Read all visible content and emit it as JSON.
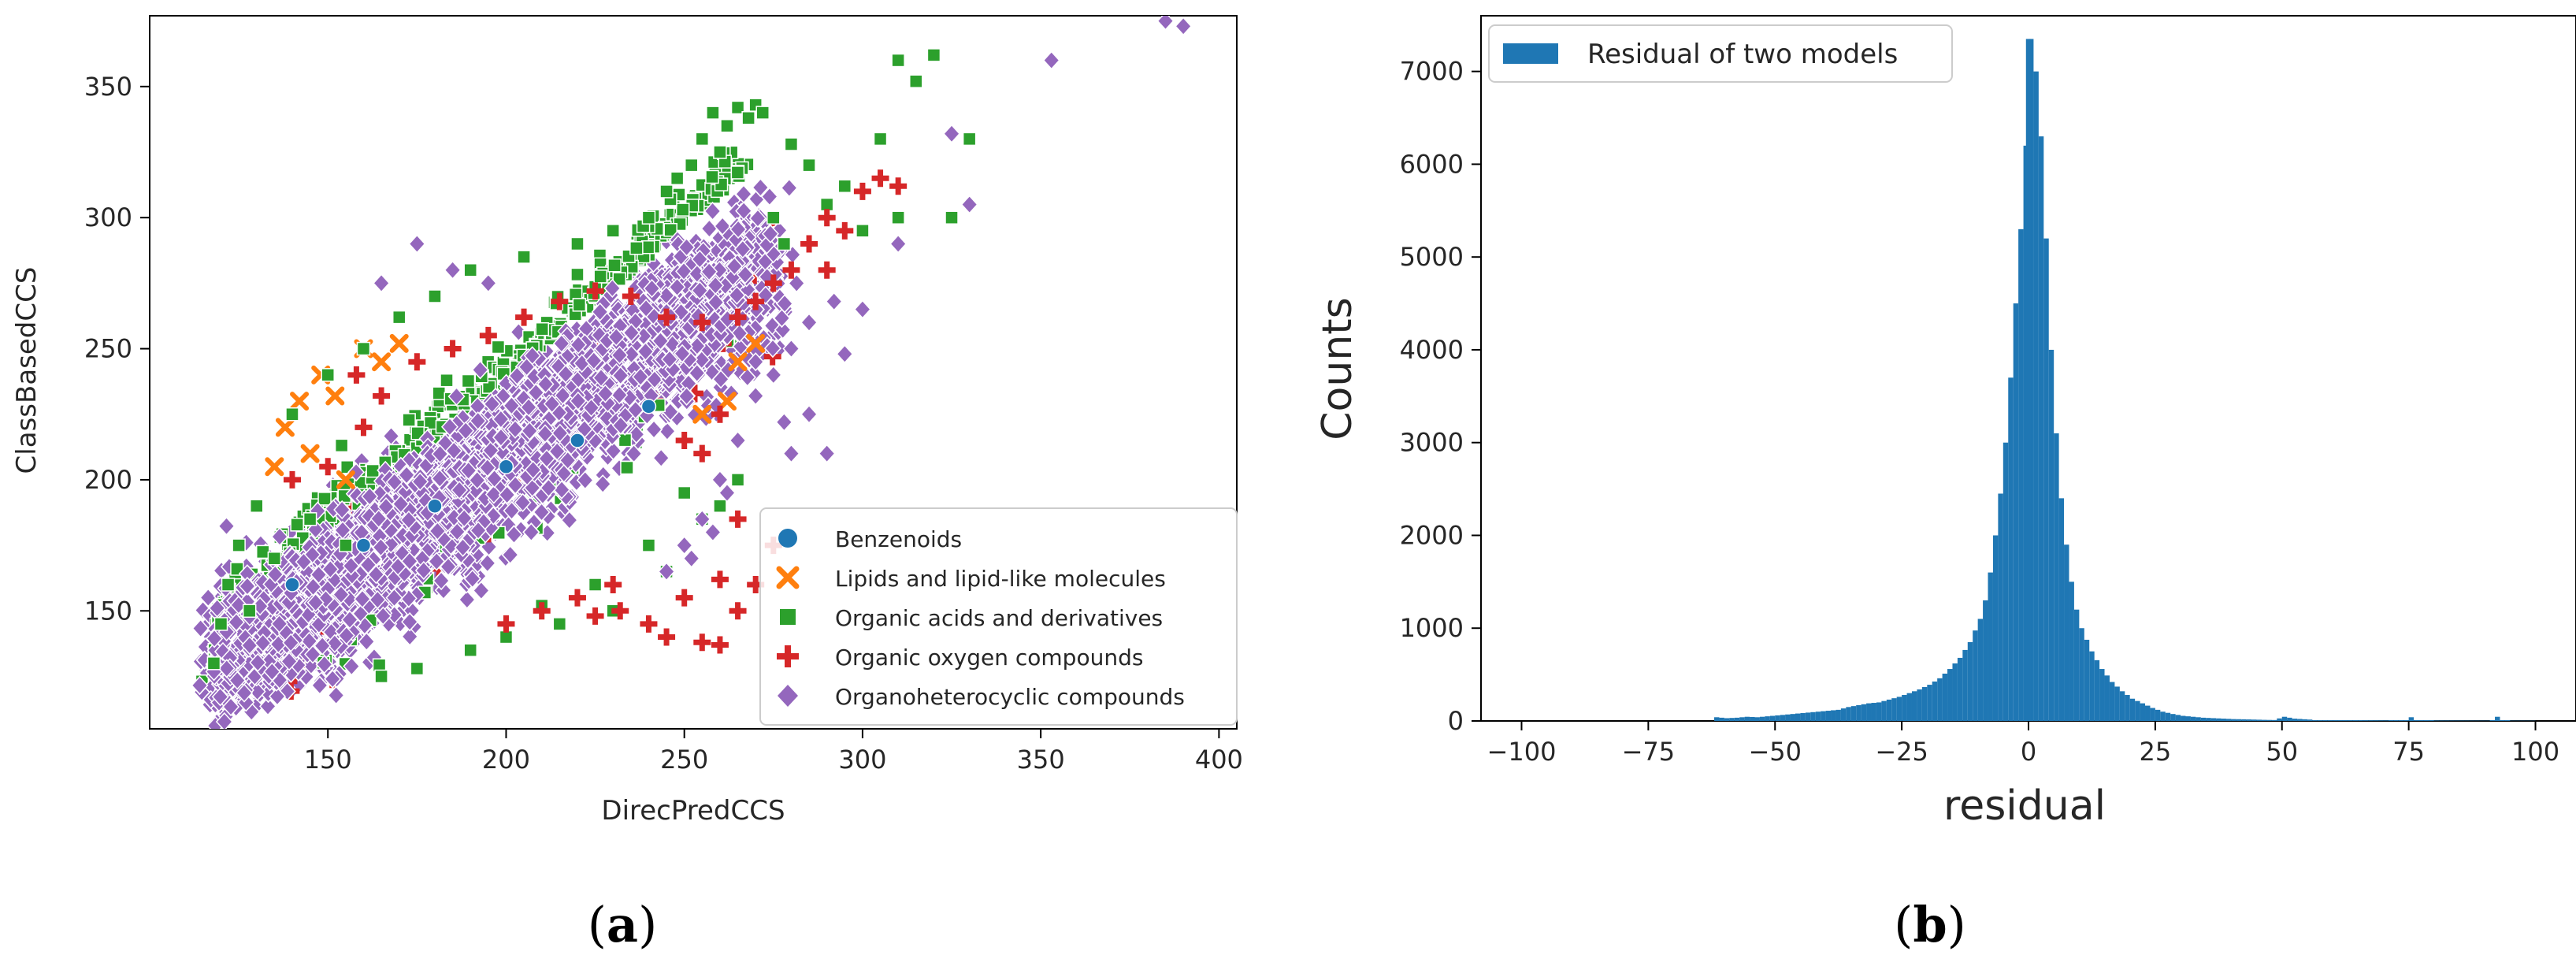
{
  "panels": {
    "a": {
      "label_open": "(",
      "label_letter": "a",
      "label_close": ")"
    },
    "b": {
      "label_open": "(",
      "label_letter": "b",
      "label_close": ")"
    }
  },
  "chart_data": [
    {
      "type": "scatter",
      "title": "",
      "xlabel": "DirecPredCCS",
      "ylabel": "ClassBasedCCS",
      "xlim": [
        100,
        405
      ],
      "ylim": [
        105,
        377
      ],
      "xticks": [
        150,
        200,
        250,
        300,
        350,
        400
      ],
      "yticks": [
        150,
        200,
        250,
        300,
        350
      ],
      "grid": false,
      "legend_position": "lower-right",
      "series": [
        {
          "name": "Benzenoids",
          "marker": "circle",
          "color": "#1f77b4",
          "points": [
            [
              140,
              160
            ],
            [
              160,
              175
            ],
            [
              180,
              190
            ],
            [
              200,
              205
            ],
            [
              220,
              215
            ],
            [
              240,
              228
            ]
          ]
        },
        {
          "name": "Lipids and lipid-like molecules",
          "marker": "x",
          "color": "#ff7f0e",
          "points": [
            [
              138,
              220
            ],
            [
              142,
              230
            ],
            [
              148,
              240
            ],
            [
              152,
              232
            ],
            [
              160,
              250
            ],
            [
              165,
              245
            ],
            [
              170,
              252
            ],
            [
              145,
              210
            ],
            [
              155,
              200
            ],
            [
              135,
              205
            ],
            [
              265,
              245
            ],
            [
              270,
              252
            ],
            [
              255,
              225
            ],
            [
              262,
              230
            ]
          ]
        },
        {
          "name": "Organic acids and derivatives",
          "marker": "square",
          "color": "#2ca02c",
          "points": [
            [
              255,
              330
            ],
            [
              258,
              340
            ],
            [
              262,
              335
            ],
            [
              265,
              342
            ],
            [
              268,
              338
            ],
            [
              260,
              325
            ],
            [
              252,
              320
            ],
            [
              248,
              315
            ],
            [
              270,
              343
            ],
            [
              272,
              340
            ],
            [
              245,
              310
            ],
            [
              240,
              300
            ],
            [
              230,
              295
            ],
            [
              220,
              290
            ],
            [
              205,
              285
            ],
            [
              190,
              280
            ],
            [
              180,
              270
            ],
            [
              170,
              262
            ],
            [
              160,
              250
            ],
            [
              150,
              240
            ],
            [
              140,
              225
            ],
            [
              130,
              190
            ],
            [
              125,
              175
            ],
            [
              122,
              160
            ],
            [
              120,
              145
            ],
            [
              118,
              130
            ],
            [
              128,
              150
            ],
            [
              135,
              170
            ],
            [
              145,
              185
            ],
            [
              155,
              175
            ],
            [
              290,
              305
            ],
            [
              295,
              312
            ],
            [
              300,
              295
            ],
            [
              310,
              300
            ],
            [
              305,
              330
            ],
            [
              310,
              360
            ],
            [
              315,
              352
            ],
            [
              320,
              362
            ],
            [
              280,
              328
            ],
            [
              285,
              320
            ],
            [
              325,
              300
            ],
            [
              330,
              330
            ],
            [
              275,
              300
            ],
            [
              278,
              290
            ],
            [
              190,
              135
            ],
            [
              200,
              140
            ],
            [
              215,
              145
            ],
            [
              230,
              150
            ],
            [
              245,
              165
            ],
            [
              255,
              185
            ],
            [
              260,
              190
            ],
            [
              265,
              200
            ],
            [
              250,
              195
            ],
            [
              240,
              175
            ],
            [
              225,
              160
            ],
            [
              210,
              152
            ],
            [
              175,
              128
            ],
            [
              165,
              125
            ]
          ]
        },
        {
          "name": "Organic oxygen compounds",
          "marker": "plus",
          "color": "#d62728",
          "points": [
            [
              245,
              140
            ],
            [
              255,
              138
            ],
            [
              260,
              137
            ],
            [
              265,
              150
            ],
            [
              270,
              160
            ],
            [
              250,
              155
            ],
            [
              240,
              145
            ],
            [
              232,
              150
            ],
            [
              225,
              148
            ],
            [
              260,
              162
            ],
            [
              275,
              175
            ],
            [
              265,
              185
            ],
            [
              300,
              310
            ],
            [
              305,
              315
            ],
            [
              310,
              312
            ],
            [
              295,
              295
            ],
            [
              290,
              300
            ],
            [
              285,
              290
            ],
            [
              280,
              280
            ],
            [
              275,
              275
            ],
            [
              270,
              268
            ],
            [
              265,
              262
            ],
            [
              255,
              260
            ],
            [
              245,
              262
            ],
            [
              235,
              270
            ],
            [
              225,
              272
            ],
            [
              215,
              268
            ],
            [
              205,
              262
            ],
            [
              195,
              255
            ],
            [
              185,
              250
            ],
            [
              175,
              245
            ],
            [
              165,
              232
            ],
            [
              160,
              220
            ],
            [
              158,
              240
            ],
            [
              150,
              205
            ],
            [
              140,
              200
            ],
            [
              230,
              160
            ],
            [
              220,
              155
            ],
            [
              210,
              150
            ],
            [
              200,
              145
            ],
            [
              250,
              215
            ],
            [
              260,
              225
            ],
            [
              255,
              210
            ],
            [
              290,
              280
            ]
          ]
        },
        {
          "name": "Organoheterocyclic compounds",
          "marker": "diamond",
          "color": "#9467bd",
          "points": [
            [
              385,
              375
            ],
            [
              390,
              373
            ],
            [
              353,
              360
            ],
            [
              325,
              332
            ],
            [
              330,
              305
            ],
            [
              300,
              265
            ],
            [
              292,
              268
            ],
            [
              285,
              260
            ],
            [
              295,
              248
            ],
            [
              280,
              250
            ],
            [
              275,
              240
            ],
            [
              270,
              245
            ],
            [
              285,
              225
            ],
            [
              278,
              222
            ],
            [
              280,
              210
            ],
            [
              290,
              210
            ],
            [
              265,
              215
            ],
            [
              270,
              232
            ],
            [
              260,
              200
            ],
            [
              262,
              195
            ],
            [
              255,
              185
            ],
            [
              250,
              175
            ],
            [
              245,
              165
            ],
            [
              258,
              180
            ],
            [
              252,
              170
            ],
            [
              175,
              290
            ],
            [
              185,
              280
            ],
            [
              165,
              275
            ],
            [
              195,
              275
            ],
            [
              310,
              290
            ]
          ]
        }
      ]
    },
    {
      "type": "bar",
      "title": "",
      "xlabel": "residual",
      "ylabel": "Counts",
      "xlim": [
        -108,
        108
      ],
      "ylim": [
        0,
        7600
      ],
      "xticks": [
        -100,
        -75,
        -50,
        -25,
        0,
        25,
        50,
        75,
        100
      ],
      "yticks": [
        0,
        1000,
        2000,
        3000,
        4000,
        5000,
        6000,
        7000
      ],
      "grid": false,
      "legend_position": "top-left",
      "bin_width": 1,
      "color": "#1f77b4",
      "series": [
        {
          "name": "Residual of two models",
          "x": [
            -62,
            -60,
            -58,
            -56,
            -54,
            -52,
            -50,
            -48,
            -46,
            -44,
            -42,
            -40,
            -38,
            -36,
            -34,
            -32,
            -30,
            -28,
            -26,
            -24,
            -22,
            -20,
            -18,
            -16,
            -14,
            -12,
            -10,
            -9,
            -8,
            -7,
            -6,
            -5,
            -4,
            -3,
            -2,
            -1,
            0,
            1,
            2,
            3,
            4,
            5,
            6,
            7,
            8,
            9,
            10,
            12,
            14,
            16,
            18,
            20,
            22,
            24,
            26,
            28,
            30,
            32,
            34,
            36,
            38,
            40,
            42,
            44,
            46,
            48,
            50,
            52,
            55,
            60,
            65,
            70,
            75,
            80,
            85,
            90,
            92,
            95,
            100
          ],
          "values": [
            40,
            30,
            35,
            45,
            40,
            50,
            60,
            70,
            80,
            90,
            100,
            110,
            120,
            150,
            170,
            190,
            200,
            230,
            260,
            300,
            340,
            390,
            460,
            560,
            680,
            850,
            1100,
            1300,
            1600,
            2000,
            2450,
            3000,
            3700,
            4500,
            5300,
            6200,
            7350,
            7000,
            6300,
            5200,
            4000,
            3100,
            2400,
            1900,
            1500,
            1200,
            1000,
            750,
            560,
            420,
            320,
            240,
            190,
            140,
            100,
            75,
            55,
            45,
            35,
            30,
            25,
            20,
            18,
            15,
            12,
            10,
            45,
            25,
            15,
            10,
            8,
            6,
            40,
            5,
            4,
            3,
            45,
            3,
            2
          ]
        }
      ]
    }
  ]
}
